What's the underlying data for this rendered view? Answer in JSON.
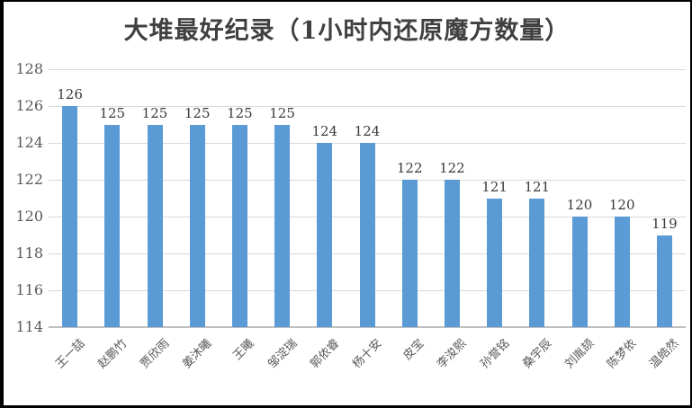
{
  "title": "大堆最好纪录（1小时内还原魔方数量）",
  "colors": {
    "bar": "#5b9bd5",
    "gridline": "#d9d9d9",
    "axis_line": "#bfbfbf",
    "tick_text": "#595959",
    "data_label_text": "#3b3b3b",
    "title_text": "#404040",
    "frame_border": "#000000",
    "background": "#ffffff"
  },
  "chart_data": {
    "type": "bar",
    "title": "大堆最好纪录（1小时内还原魔方数量）",
    "categories": [
      "王一喆",
      "赵鹏竹",
      "贾欣雨",
      "姜沐曦",
      "王曦",
      "邹淀瑞",
      "郭依睿",
      "杨十安",
      "皮宝",
      "李浚熙",
      "孙誉铭",
      "桑宇辰",
      "刘胤颉",
      "陈梦依",
      "温皓然"
    ],
    "values": [
      126,
      125,
      125,
      125,
      125,
      125,
      124,
      124,
      122,
      122,
      121,
      121,
      120,
      120,
      119
    ],
    "data_labels": [
      126,
      125,
      125,
      125,
      125,
      125,
      124,
      124,
      122,
      122,
      121,
      121,
      120,
      120,
      119
    ],
    "xlabel": "",
    "ylabel": "",
    "ylim": [
      114,
      128
    ],
    "yticks": [
      114,
      116,
      118,
      120,
      122,
      124,
      126,
      128
    ],
    "grid": true,
    "legend": false,
    "bar_color": "#5b9bd5"
  }
}
